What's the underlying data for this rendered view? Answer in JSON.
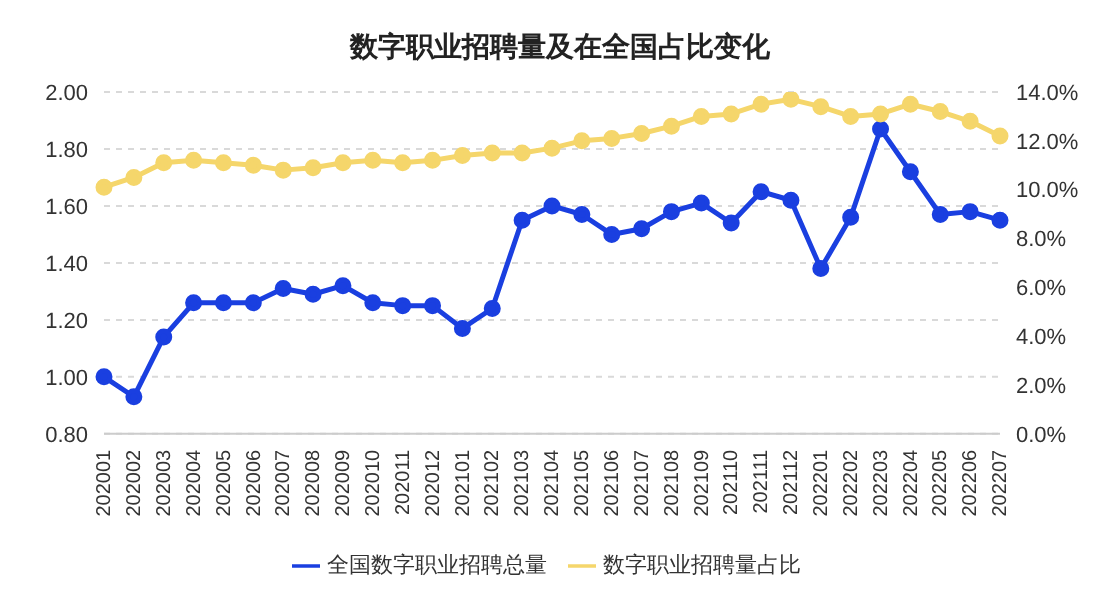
{
  "chart_data": {
    "type": "line",
    "title": "数字职业招聘量及在全国占比变化",
    "categories": [
      "202001",
      "202002",
      "202003",
      "202004",
      "202005",
      "202006",
      "202007",
      "202008",
      "202009",
      "202010",
      "202011",
      "202012",
      "202101",
      "202102",
      "202103",
      "202104",
      "202105",
      "202106",
      "202107",
      "202108",
      "202109",
      "202110",
      "202111",
      "202112",
      "202201",
      "202202",
      "202203",
      "202204",
      "202205",
      "202206",
      "202207"
    ],
    "series": [
      {
        "name": "全国数字职业招聘总量",
        "color": "#1a3fe0",
        "values": [
          1.0,
          0.93,
          1.14,
          1.26,
          1.26,
          1.26,
          1.31,
          1.29,
          1.32,
          1.26,
          1.25,
          1.25,
          1.17,
          1.24,
          1.55,
          1.6,
          1.57,
          1.5,
          1.52,
          1.58,
          1.61,
          1.54,
          1.65,
          1.62,
          1.38,
          1.56,
          1.87,
          1.72,
          1.57,
          1.58,
          1.55
        ]
      },
      {
        "name": "数字职业招聘量占比",
        "color": "#f5d66b",
        "axis": "y2",
        "values": [
          10.1,
          10.5,
          11.1,
          11.2,
          11.1,
          11.0,
          10.8,
          10.9,
          11.1,
          11.2,
          11.1,
          11.2,
          11.4,
          11.5,
          11.5,
          11.7,
          12.0,
          12.1,
          12.3,
          12.6,
          13.0,
          13.1,
          13.5,
          13.7,
          13.4,
          13.0,
          13.1,
          13.5,
          13.2,
          12.8,
          12.2
        ]
      }
    ],
    "ylim": [
      0.8,
      2.0
    ],
    "yticks": [
      {
        "value": 0.8,
        "label": "0.80"
      },
      {
        "value": 1.0,
        "label": "1.00"
      },
      {
        "value": 1.2,
        "label": "1.20"
      },
      {
        "value": 1.4,
        "label": "1.40"
      },
      {
        "value": 1.6,
        "label": "1.60"
      },
      {
        "value": 1.8,
        "label": "1.80"
      },
      {
        "value": 2.0,
        "label": "2.00"
      }
    ],
    "y2lim": [
      0,
      14
    ],
    "y2ticks": [
      {
        "value": 0,
        "label": "0.0%"
      },
      {
        "value": 2,
        "label": "2.0%"
      },
      {
        "value": 4,
        "label": "4.0%"
      },
      {
        "value": 6,
        "label": "6.0%"
      },
      {
        "value": 8,
        "label": "8.0%"
      },
      {
        "value": 10,
        "label": "10.0%"
      },
      {
        "value": 12,
        "label": "12.0%"
      },
      {
        "value": 14,
        "label": "14.0%"
      }
    ],
    "grid": "y",
    "legend": "bottom",
    "marker": "circle",
    "line_style": "solid"
  }
}
